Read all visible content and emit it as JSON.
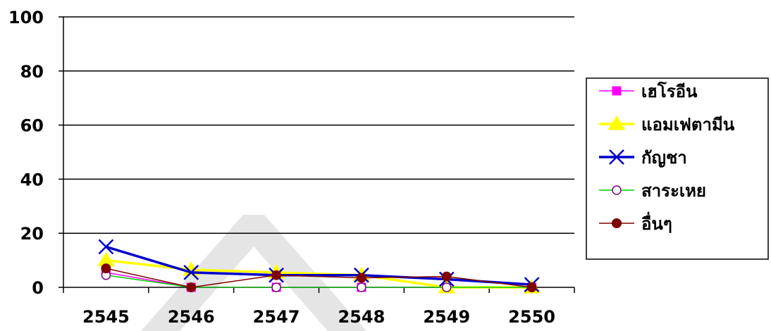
{
  "colors": {
    "background": "#ffffff",
    "axis": "#000000",
    "grid": "#000000"
  },
  "chart_data": {
    "type": "line",
    "categories": [
      "2545",
      "2546",
      "2547",
      "2548",
      "2549",
      "2550"
    ],
    "ylim": [
      0,
      100
    ],
    "yticks": [
      "0",
      "20",
      "40",
      "60",
      "80",
      "100"
    ],
    "grid": true,
    "legend_position": "right",
    "series": [
      {
        "name": "เฮโรอีน",
        "values": [
          5.5,
          0,
          0,
          0,
          0,
          0
        ],
        "color": "#ff00ff",
        "marker": "square",
        "line_width": "thin"
      },
      {
        "name": "แอมเฟตามีน",
        "values": [
          10,
          6.5,
          5.5,
          4.5,
          0,
          0
        ],
        "color": "#ffff00",
        "marker": "triangle",
        "line_width": "thick"
      },
      {
        "name": "กัญชา",
        "values": [
          15,
          5.5,
          4.5,
          4.5,
          3,
          1
        ],
        "color": "#0000cc",
        "marker": "x",
        "line_width": "thick"
      },
      {
        "name": "สาระเหย",
        "values": [
          4.5,
          0,
          0,
          0,
          0,
          0
        ],
        "color": "#00cc00",
        "marker": "circle-open",
        "marker_edge": "#800080",
        "line_width": "thin"
      },
      {
        "name": "อื่นๆ",
        "values": [
          7,
          0,
          4.5,
          3.5,
          4,
          0
        ],
        "color": "#800000",
        "marker": "circle-filled",
        "line_width": "thin"
      }
    ]
  }
}
